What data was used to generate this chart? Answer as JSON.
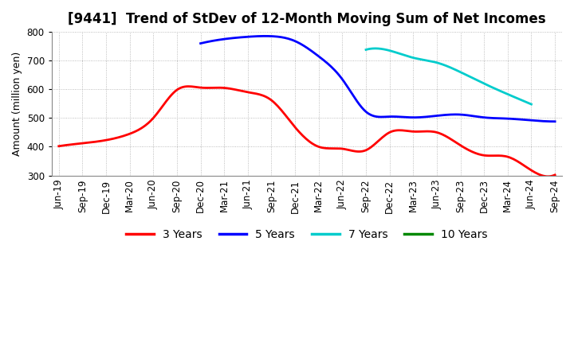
{
  "title": "[9441]  Trend of StDev of 12-Month Moving Sum of Net Incomes",
  "ylabel": "Amount (million yen)",
  "ylim": [
    300,
    800
  ],
  "yticks": [
    300,
    400,
    500,
    600,
    700,
    800
  ],
  "background_color": "#ffffff",
  "grid_color": "#aaaaaa",
  "x_labels": [
    "Jun-19",
    "Sep-19",
    "Dec-19",
    "Mar-20",
    "Jun-20",
    "Sep-20",
    "Dec-20",
    "Mar-21",
    "Jun-21",
    "Sep-21",
    "Dec-21",
    "Mar-22",
    "Jun-22",
    "Sep-22",
    "Dec-22",
    "Mar-23",
    "Jun-23",
    "Sep-23",
    "Dec-23",
    "Mar-24",
    "Jun-24",
    "Sep-24"
  ],
  "series": {
    "3 Years": {
      "color": "#ff0000",
      "x_indices": [
        0,
        1,
        2,
        3,
        4,
        5,
        6,
        7,
        8,
        9,
        10,
        11,
        12,
        13,
        14,
        15,
        16,
        17,
        18,
        19,
        20,
        21
      ],
      "values": [
        402,
        412,
        423,
        445,
        500,
        598,
        606,
        605,
        590,
        562,
        468,
        400,
        393,
        388,
        450,
        453,
        450,
        405,
        370,
        365,
        318,
        302
      ]
    },
    "5 Years": {
      "color": "#0000ff",
      "x_indices": [
        6,
        7,
        8,
        9,
        10,
        11,
        12,
        13,
        14,
        15,
        16,
        17,
        18,
        19,
        20,
        21
      ],
      "values": [
        760,
        775,
        783,
        785,
        768,
        715,
        635,
        522,
        505,
        502,
        508,
        512,
        502,
        498,
        492,
        488
      ]
    },
    "7 Years": {
      "color": "#00cccc",
      "x_indices": [
        13,
        14,
        15,
        16,
        17,
        18,
        19,
        20
      ],
      "values": [
        738,
        735,
        710,
        693,
        660,
        620,
        583,
        548
      ]
    },
    "10 Years": {
      "color": "#008800",
      "x_indices": [],
      "values": []
    }
  },
  "legend_entries": [
    "3 Years",
    "5 Years",
    "7 Years",
    "10 Years"
  ],
  "legend_colors": [
    "#ff0000",
    "#0000ff",
    "#00cccc",
    "#008800"
  ],
  "title_fontsize": 12,
  "axis_fontsize": 9,
  "tick_fontsize": 8.5,
  "legend_fontsize": 10,
  "linewidth": 2.0
}
